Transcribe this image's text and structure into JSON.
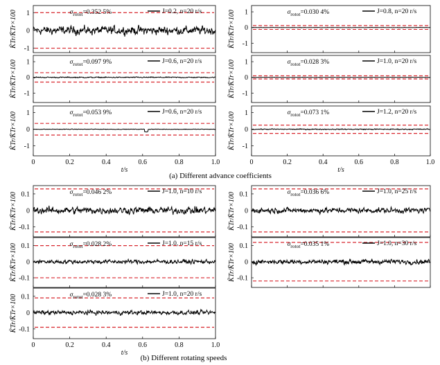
{
  "chart_data": [
    {
      "type": "line",
      "group": "a",
      "sigma_label": "σrotot=0.352 5%",
      "legend": "J=0.2, n=20 r/s",
      "amplitude": 0.55,
      "band": 1.0,
      "ylim": [
        -1.25,
        1.4
      ],
      "yticks": [
        -1,
        0,
        1
      ],
      "show_xticks": false,
      "show_xlabel": false,
      "ylabel": "K̃Tr/K̄Tr×100",
      "xlim": [
        0,
        1
      ]
    },
    {
      "type": "line",
      "group": "a",
      "sigma_label": "σrotot=0.097 9%",
      "legend": "J=0.6, n=20 r/s",
      "amplitude": 0.08,
      "band": -0.3,
      "ylim": [
        -1.6,
        1.4
      ],
      "yticks": [
        -1,
        0,
        1
      ],
      "show_xticks": false,
      "show_xlabel": false,
      "ylabel": "K̃Tr/K̄Tr×100",
      "xlim": [
        0,
        1
      ]
    },
    {
      "type": "line",
      "group": "a",
      "sigma_label": "σrotot=0.053 9%",
      "legend": "J=0.6, n=20 r/s",
      "amplitude": 0.04,
      "band": -0.35,
      "ylim": [
        -1.6,
        1.4
      ],
      "yticks": [
        -1,
        0,
        1
      ],
      "show_xticks": true,
      "show_xlabel": true,
      "ylabel": "K̃Tr/K̄Tr×100",
      "xlim": [
        0,
        1
      ]
    },
    {
      "type": "line",
      "group": "a",
      "sigma_label": "σrotot=0.030 4%",
      "legend": "J=0.8, n=20 r/s",
      "amplitude": 0.03,
      "band": 0.12,
      "ylim": [
        -1.6,
        1.4
      ],
      "yticks": [
        -1,
        0,
        1
      ],
      "show_xticks": false,
      "show_xlabel": false,
      "ylabel": "K̃Tr/K̄Tr×100",
      "xlim": [
        0,
        1
      ]
    },
    {
      "type": "line",
      "group": "a",
      "sigma_label": "σrotot=0.028 3%",
      "legend": "J=1.0, n=20 r/s",
      "amplitude": 0.03,
      "band": 0.1,
      "ylim": [
        -1.6,
        1.4
      ],
      "yticks": [
        -1,
        0,
        1
      ],
      "show_xticks": false,
      "show_xlabel": false,
      "ylabel": "K̃Tr/K̄Tr×100",
      "xlim": [
        0,
        1
      ]
    },
    {
      "type": "line",
      "group": "a",
      "sigma_label": "σrotot=0.073 1%",
      "legend": "J=1.2, n=20 r/s",
      "amplitude": 0.07,
      "band": 0.25,
      "ylim": [
        -1.6,
        1.4
      ],
      "yticks": [
        -1,
        0,
        1
      ],
      "show_xticks": true,
      "show_xlabel": true,
      "ylabel": "K̃Tr/K̄Tr×100",
      "xlim": [
        0,
        1
      ]
    },
    {
      "type": "line",
      "group": "b",
      "sigma_label": "σrotot=0.046 2%",
      "legend": "J=1.0, n=10 r/s",
      "amplitude": 0.05,
      "band": 0.13,
      "ylim": [
        -0.16,
        0.15
      ],
      "yticks": [
        -0.1,
        0,
        0.1
      ],
      "show_xticks": false,
      "show_xlabel": false,
      "ylabel": "K̃Tr/K̄Tr×100",
      "xlim": [
        0,
        1
      ]
    },
    {
      "type": "line",
      "group": "b",
      "sigma_label": "σrotot=0.028 2%",
      "legend": "J=1.0, n=15 r/s",
      "amplitude": 0.03,
      "band": -0.1,
      "ylim": [
        -0.16,
        0.15
      ],
      "yticks": [
        -0.1,
        0,
        0.1
      ],
      "show_xticks": false,
      "show_xlabel": false,
      "ylabel": "K̃Tr/K̄Tr×100",
      "xlim": [
        0,
        1
      ]
    },
    {
      "type": "line",
      "group": "b",
      "sigma_label": "σrotot=0.028 3%",
      "legend": "J=1.0, n=20 r/s",
      "amplitude": 0.03,
      "band": 0.09,
      "ylim": [
        -0.16,
        0.15
      ],
      "yticks": [
        -0.1,
        0,
        0.1
      ],
      "show_xticks": true,
      "show_xlabel": true,
      "ylabel": "K̃Tr/K̄Tr×100",
      "xlim": [
        0,
        1
      ]
    },
    {
      "type": "line",
      "group": "b",
      "sigma_label": "σrotot=0.036 6%",
      "legend": "J=1.0, n=25 r/s",
      "amplitude": 0.038,
      "band": 0.13,
      "ylim": [
        -0.16,
        0.15
      ],
      "yticks": [
        -0.1,
        0,
        0.1
      ],
      "show_xticks": false,
      "show_xlabel": false,
      "ylabel": "K̃Tr/K̄Tr×100",
      "xlim": [
        0,
        1
      ]
    },
    {
      "type": "line",
      "group": "b",
      "sigma_label": "σrotot=0.035 1%",
      "legend": "J=1.0, n=30 r/s",
      "amplitude": 0.035,
      "band": -0.12,
      "ylim": [
        -0.16,
        0.15
      ],
      "yticks": [
        -0.1,
        0,
        0.1
      ],
      "show_xticks": false,
      "show_xlabel": false,
      "ylabel": "K̃Tr/K̄Tr×100",
      "xlim": [
        0,
        1
      ]
    }
  ],
  "figure": {
    "xlabel": "t/s",
    "xticks": [
      "0",
      "0.2",
      "0.4",
      "0.6",
      "0.8",
      "1.0"
    ],
    "caption_a": "(a) Different advance coefficients",
    "caption_b": "(b) Different rotating speeds",
    "band_color": "#d8262d",
    "line_color": "#000000"
  }
}
